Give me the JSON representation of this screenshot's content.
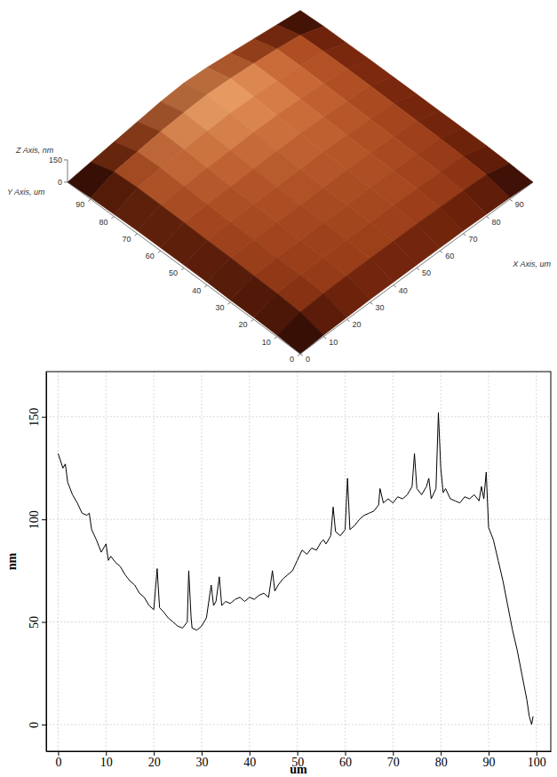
{
  "chart_data": [
    {
      "type": "surface",
      "x_label": "X Axis, um",
      "y_label": "Y Axis, um",
      "z_label": "Z Axis, nm",
      "xlim": [
        0,
        100
      ],
      "ylim": [
        0,
        100
      ],
      "zlim": [
        0,
        150
      ],
      "xticks": [
        0,
        10,
        20,
        30,
        40,
        50,
        60,
        70,
        80,
        90
      ],
      "yticks": [
        0,
        10,
        20,
        30,
        40,
        50,
        60,
        70,
        80,
        90
      ],
      "zticks": [
        0,
        150
      ],
      "x": [
        0,
        10,
        20,
        30,
        40,
        50,
        60,
        70,
        80,
        90,
        100
      ],
      "y": [
        0,
        10,
        20,
        30,
        40,
        50,
        60,
        70,
        80,
        90,
        100
      ],
      "z": [
        [
          0,
          10,
          15,
          20,
          20,
          20,
          20,
          20,
          15,
          10,
          0
        ],
        [
          10,
          50,
          60,
          65,
          65,
          65,
          65,
          62,
          58,
          50,
          10
        ],
        [
          15,
          60,
          70,
          72,
          74,
          75,
          75,
          72,
          68,
          60,
          15
        ],
        [
          15,
          65,
          72,
          70,
          76,
          78,
          80,
          78,
          72,
          65,
          15
        ],
        [
          20,
          70,
          76,
          78,
          80,
          82,
          84,
          82,
          76,
          68,
          15
        ],
        [
          20,
          72,
          78,
          82,
          85,
          88,
          90,
          86,
          80,
          70,
          15
        ],
        [
          20,
          75,
          82,
          86,
          90,
          95,
          96,
          92,
          84,
          72,
          15
        ],
        [
          20,
          78,
          88,
          95,
          100,
          105,
          104,
          98,
          88,
          74,
          15
        ],
        [
          15,
          80,
          95,
          105,
          112,
          118,
          114,
          104,
          90,
          72,
          12
        ],
        [
          10,
          70,
          90,
          110,
          122,
          128,
          120,
          106,
          88,
          65,
          10
        ],
        [
          0,
          20,
          40,
          60,
          80,
          90,
          80,
          60,
          40,
          20,
          0
        ]
      ]
    },
    {
      "type": "line",
      "x_label": "um",
      "y_label": "nm",
      "color": "#000000",
      "grid": true,
      "xlim": [
        -2.5,
        103
      ],
      "ylim": [
        -13,
        172
      ],
      "xticks": [
        0,
        10,
        20,
        30,
        40,
        50,
        60,
        70,
        80,
        90,
        100
      ],
      "yticks": [
        0,
        50,
        100,
        150
      ],
      "x": [
        0,
        1,
        1.5,
        2,
        3,
        4,
        5,
        6,
        6.5,
        7,
        8,
        9,
        10,
        10.5,
        11,
        12,
        13,
        14,
        15,
        16,
        17,
        18,
        19,
        20,
        20.7,
        21.2,
        22,
        23,
        24,
        25,
        26,
        27,
        27.3,
        27.8,
        28,
        29,
        30,
        31,
        32,
        32.5,
        33,
        33.7,
        34.2,
        35,
        36,
        37,
        38,
        39,
        40,
        41,
        42,
        43,
        44,
        44.8,
        45.3,
        46,
        47,
        48,
        49,
        50,
        51,
        52,
        53,
        54,
        55,
        55.5,
        56,
        57,
        57.5,
        58,
        59,
        60,
        60.5,
        61,
        62,
        63,
        64,
        65,
        66,
        67,
        67.3,
        68,
        69,
        70,
        71,
        72,
        73,
        74,
        74.5,
        75,
        76,
        77,
        77.5,
        78,
        79,
        79.5,
        80,
        80.5,
        81,
        82,
        83,
        84,
        85,
        86,
        87,
        88,
        88.5,
        89,
        89.5,
        90,
        91,
        92,
        93,
        94,
        95,
        96,
        97,
        98,
        98.5,
        99,
        99.3
      ],
      "values": [
        132,
        125,
        127,
        118,
        112,
        108,
        103,
        102,
        103,
        95,
        90,
        84,
        88,
        80,
        82,
        79,
        77,
        73,
        70,
        68,
        64,
        62,
        58,
        56,
        76,
        57,
        55,
        52,
        50,
        48,
        47,
        50,
        75,
        52,
        47,
        46,
        48,
        52,
        68,
        58,
        60,
        72,
        58,
        60,
        59,
        61,
        62,
        60,
        62,
        61,
        63,
        64,
        62,
        75,
        65,
        68,
        71,
        73,
        75,
        80,
        85,
        83,
        86,
        85,
        89,
        90,
        88,
        92,
        106,
        94,
        92,
        95,
        120,
        95,
        97,
        100,
        102,
        103,
        104,
        107,
        115,
        108,
        110,
        108,
        111,
        110,
        112,
        116,
        132,
        115,
        112,
        116,
        120,
        110,
        115,
        152,
        125,
        113,
        115,
        110,
        109,
        108,
        111,
        110,
        112,
        109,
        116,
        110,
        123,
        96,
        90,
        80,
        70,
        58,
        46,
        36,
        24,
        12,
        4,
        0,
        4
      ]
    }
  ]
}
